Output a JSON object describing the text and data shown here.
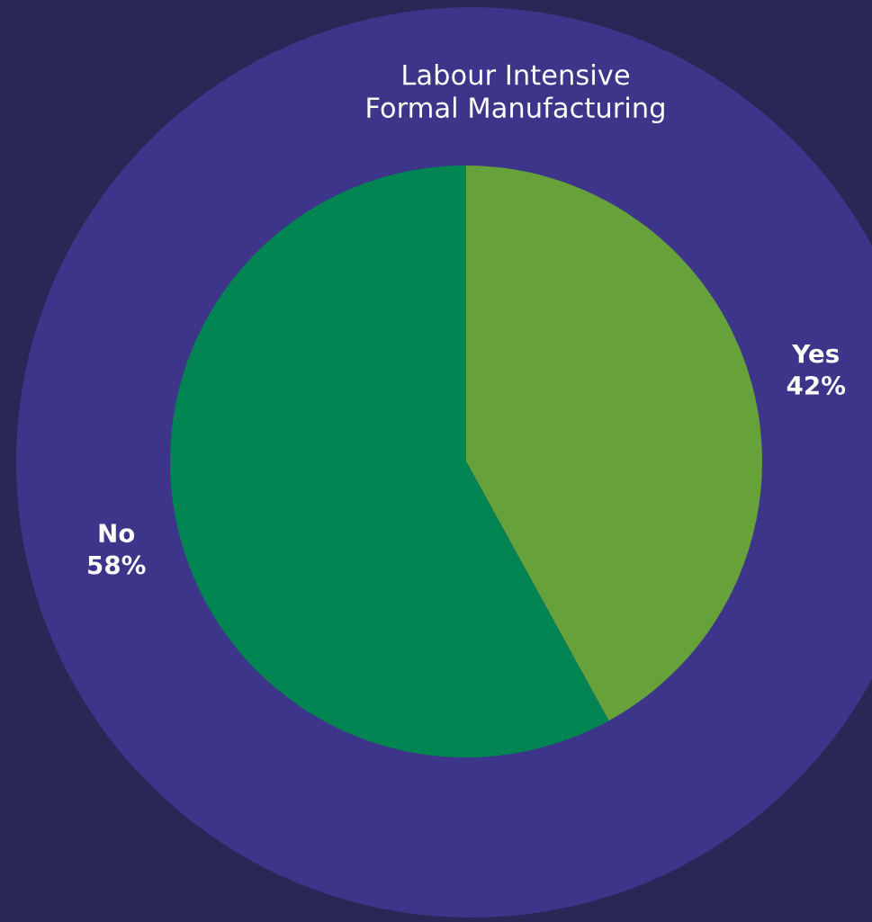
{
  "chart_data": {
    "type": "pie",
    "title": "Labour Intensive\nFormal Manufacturing",
    "categories": [
      "Yes",
      "No"
    ],
    "values": [
      42,
      58
    ],
    "value_labels": [
      "42%",
      "58%"
    ],
    "colors": [
      "#66a13a",
      "#008452"
    ],
    "legend": false
  }
}
